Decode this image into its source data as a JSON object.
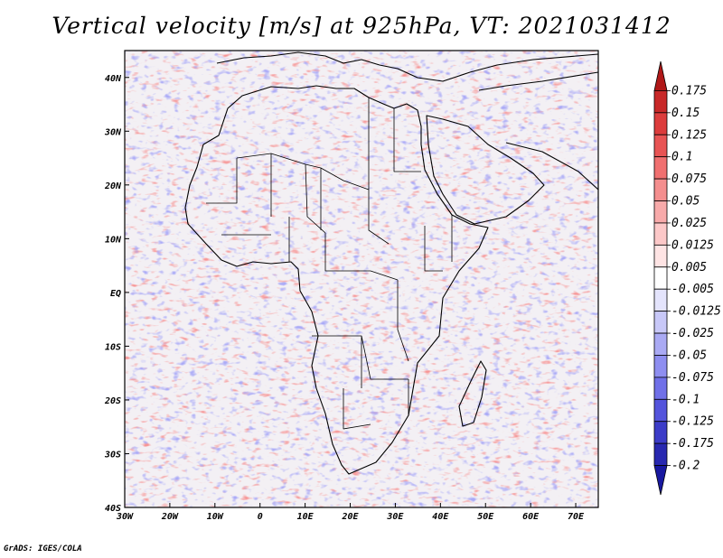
{
  "title": "Vertical velocity [m/s] at 925hPa, VT: 2021031412",
  "credit": "GrADS: IGES/COLA",
  "map": {
    "lon_range": [
      -30,
      75
    ],
    "lat_range": [
      -40,
      45
    ],
    "lon_ticks": [
      "30W",
      "20W",
      "10W",
      "0",
      "10E",
      "20E",
      "30E",
      "40E",
      "50E",
      "60E",
      "70E"
    ],
    "lon_tick_values": [
      -30,
      -20,
      -10,
      0,
      10,
      20,
      30,
      40,
      50,
      60,
      70
    ],
    "lat_ticks": [
      "40N",
      "30N",
      "20N",
      "10N",
      "EQ",
      "10S",
      "20S",
      "30S",
      "40S"
    ],
    "lat_tick_values": [
      40,
      30,
      20,
      10,
      0,
      -10,
      -20,
      -30,
      -40
    ],
    "coast_color": "#000000"
  },
  "colorbar": {
    "labels": [
      "0.175",
      "0.15",
      "0.125",
      "0.1",
      "0.075",
      "0.05",
      "0.025",
      "0.0125",
      "0.005",
      "-0.005",
      "-0.0125",
      "-0.025",
      "-0.05",
      "-0.075",
      "-0.1",
      "-0.125",
      "-0.175",
      "-0.2"
    ],
    "colors": [
      "#b01818",
      "#c82828",
      "#dc3c3c",
      "#e85454",
      "#f07070",
      "#f48e8e",
      "#f8aaaa",
      "#fcc8c8",
      "#fee4e4",
      "#ffffff",
      "#e4e4fc",
      "#c8c8f8",
      "#aaaaf4",
      "#8e8ef0",
      "#7070e8",
      "#5454dc",
      "#3c3cc8",
      "#2828b0",
      "#1818a0"
    ]
  }
}
